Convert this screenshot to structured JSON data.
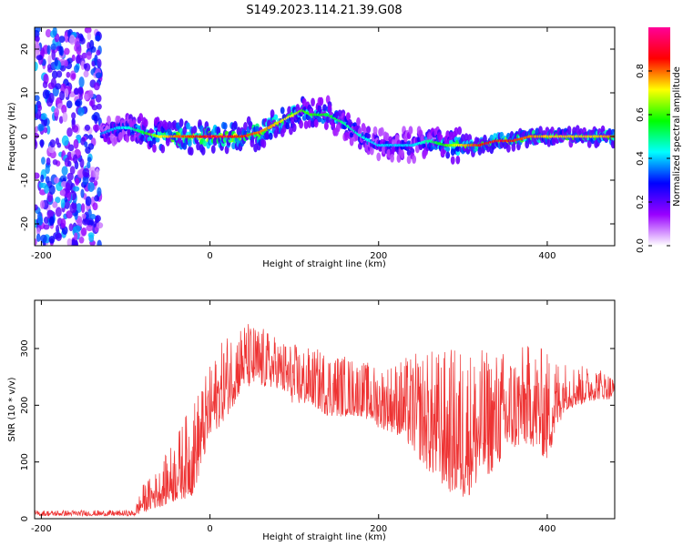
{
  "title": "S149.2023.114.21.39.G08",
  "chart_data": [
    {
      "type": "heatmap",
      "xlabel": "Height of straight line (km)",
      "ylabel": "Frequency (Hz)",
      "xlim": [
        -208,
        480
      ],
      "ylim": [
        -25,
        25
      ],
      "xticks": [
        -200,
        0,
        200,
        400
      ],
      "yticks": [
        -20,
        -10,
        0,
        10,
        20
      ],
      "colorbar": {
        "label": "Normalized spectral amplitude",
        "range": [
          0.0,
          1.0
        ],
        "ticks": [
          "0.0",
          "0.2",
          "0.4",
          "0.6",
          "0.8"
        ],
        "colors": [
          "#ffffff",
          "#9900ff",
          "#0000ff",
          "#00ffff",
          "#00ff00",
          "#ffff00",
          "#ff0000",
          "#ff0099"
        ]
      },
      "ridge": {
        "x": [
          -130,
          -110,
          -95,
          -80,
          -60,
          -40,
          -20,
          0,
          20,
          40,
          60,
          80,
          100,
          110,
          120,
          140,
          160,
          180,
          200,
          220,
          240,
          260,
          280,
          300,
          320,
          340,
          360,
          380,
          400,
          420,
          440,
          460,
          480
        ],
        "y": [
          0.5,
          2,
          2,
          1,
          0,
          0,
          0,
          0,
          0,
          0,
          1,
          3,
          5,
          6,
          5,
          5,
          3,
          0,
          -2,
          -2,
          -2,
          -1,
          -2,
          -2,
          -2,
          -1,
          -1,
          0,
          0,
          0,
          0,
          0,
          0
        ],
        "amplitude": [
          0.35,
          0.4,
          0.45,
          0.55,
          0.7,
          0.8,
          0.85,
          0.9,
          0.9,
          0.85,
          0.8,
          0.75,
          0.7,
          0.6,
          0.6,
          0.55,
          0.5,
          0.45,
          0.4,
          0.4,
          0.4,
          0.5,
          0.6,
          0.75,
          0.85,
          0.9,
          0.85,
          0.8,
          0.75,
          0.75,
          0.75,
          0.75,
          0.8
        ]
      },
      "noise_region_x": [
        -208,
        -130
      ]
    },
    {
      "type": "line",
      "xlabel": "Height of straight line (km)",
      "ylabel": "SNR (10 * v/v)",
      "xlim": [
        -208,
        480
      ],
      "ylim": [
        0,
        385
      ],
      "xticks": [
        -200,
        0,
        200,
        400
      ],
      "yticks": [
        0,
        100,
        200,
        300
      ],
      "color": "#ee3333",
      "envelope": {
        "x": [
          -208,
          -90,
          -80,
          -60,
          -40,
          -20,
          0,
          20,
          40,
          60,
          80,
          100,
          120,
          140,
          160,
          180,
          200,
          220,
          240,
          260,
          280,
          300,
          320,
          340,
          360,
          380,
          400,
          420,
          440,
          460,
          480
        ],
        "min": [
          5,
          5,
          10,
          20,
          30,
          40,
          140,
          180,
          230,
          230,
          230,
          200,
          200,
          180,
          180,
          180,
          160,
          150,
          120,
          80,
          50,
          30,
          60,
          90,
          120,
          130,
          100,
          190,
          200,
          210,
          210
        ],
        "max": [
          15,
          15,
          60,
          90,
          150,
          210,
          270,
          330,
          350,
          340,
          320,
          310,
          300,
          300,
          290,
          280,
          270,
          280,
          290,
          300,
          300,
          310,
          300,
          300,
          300,
          310,
          300,
          280,
          270,
          270,
          250
        ]
      }
    }
  ]
}
